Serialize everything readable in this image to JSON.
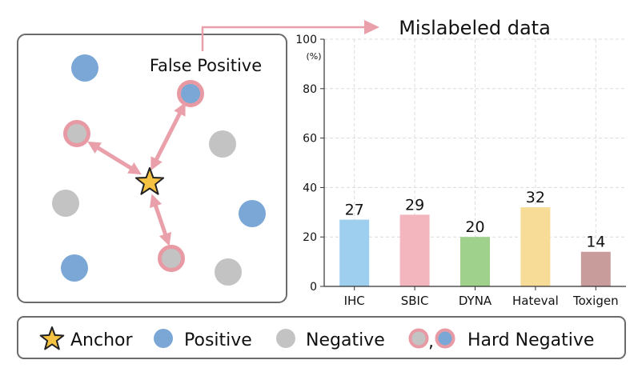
{
  "annotations": {
    "false_positive": "False Positive",
    "mislabeled": "Mislabeled data"
  },
  "legend": {
    "anchor": "Anchor",
    "positive": "Positive",
    "negative": "Negative",
    "separator": ",",
    "hard_negative": "Hard Negative"
  },
  "colors": {
    "positive": "#7aa7d6",
    "negative": "#c3c3c3",
    "hard_ring": "#e89aa4",
    "anchor": "#f5c242",
    "arrow": "#e9a0aa"
  },
  "chart_data": {
    "type": "bar",
    "categories": [
      "IHC",
      "SBIC",
      "DYNA",
      "Hateval",
      "Toxigen"
    ],
    "values": [
      27,
      29,
      20,
      32,
      14
    ],
    "colors": [
      "#9ecfee",
      "#f3b6bf",
      "#9fd08c",
      "#f7dc98",
      "#c99c9c"
    ],
    "ylim": [
      0,
      100
    ],
    "yticks": [
      0,
      20,
      40,
      60,
      80,
      100
    ],
    "unit_label": "(%)",
    "grid": true
  }
}
